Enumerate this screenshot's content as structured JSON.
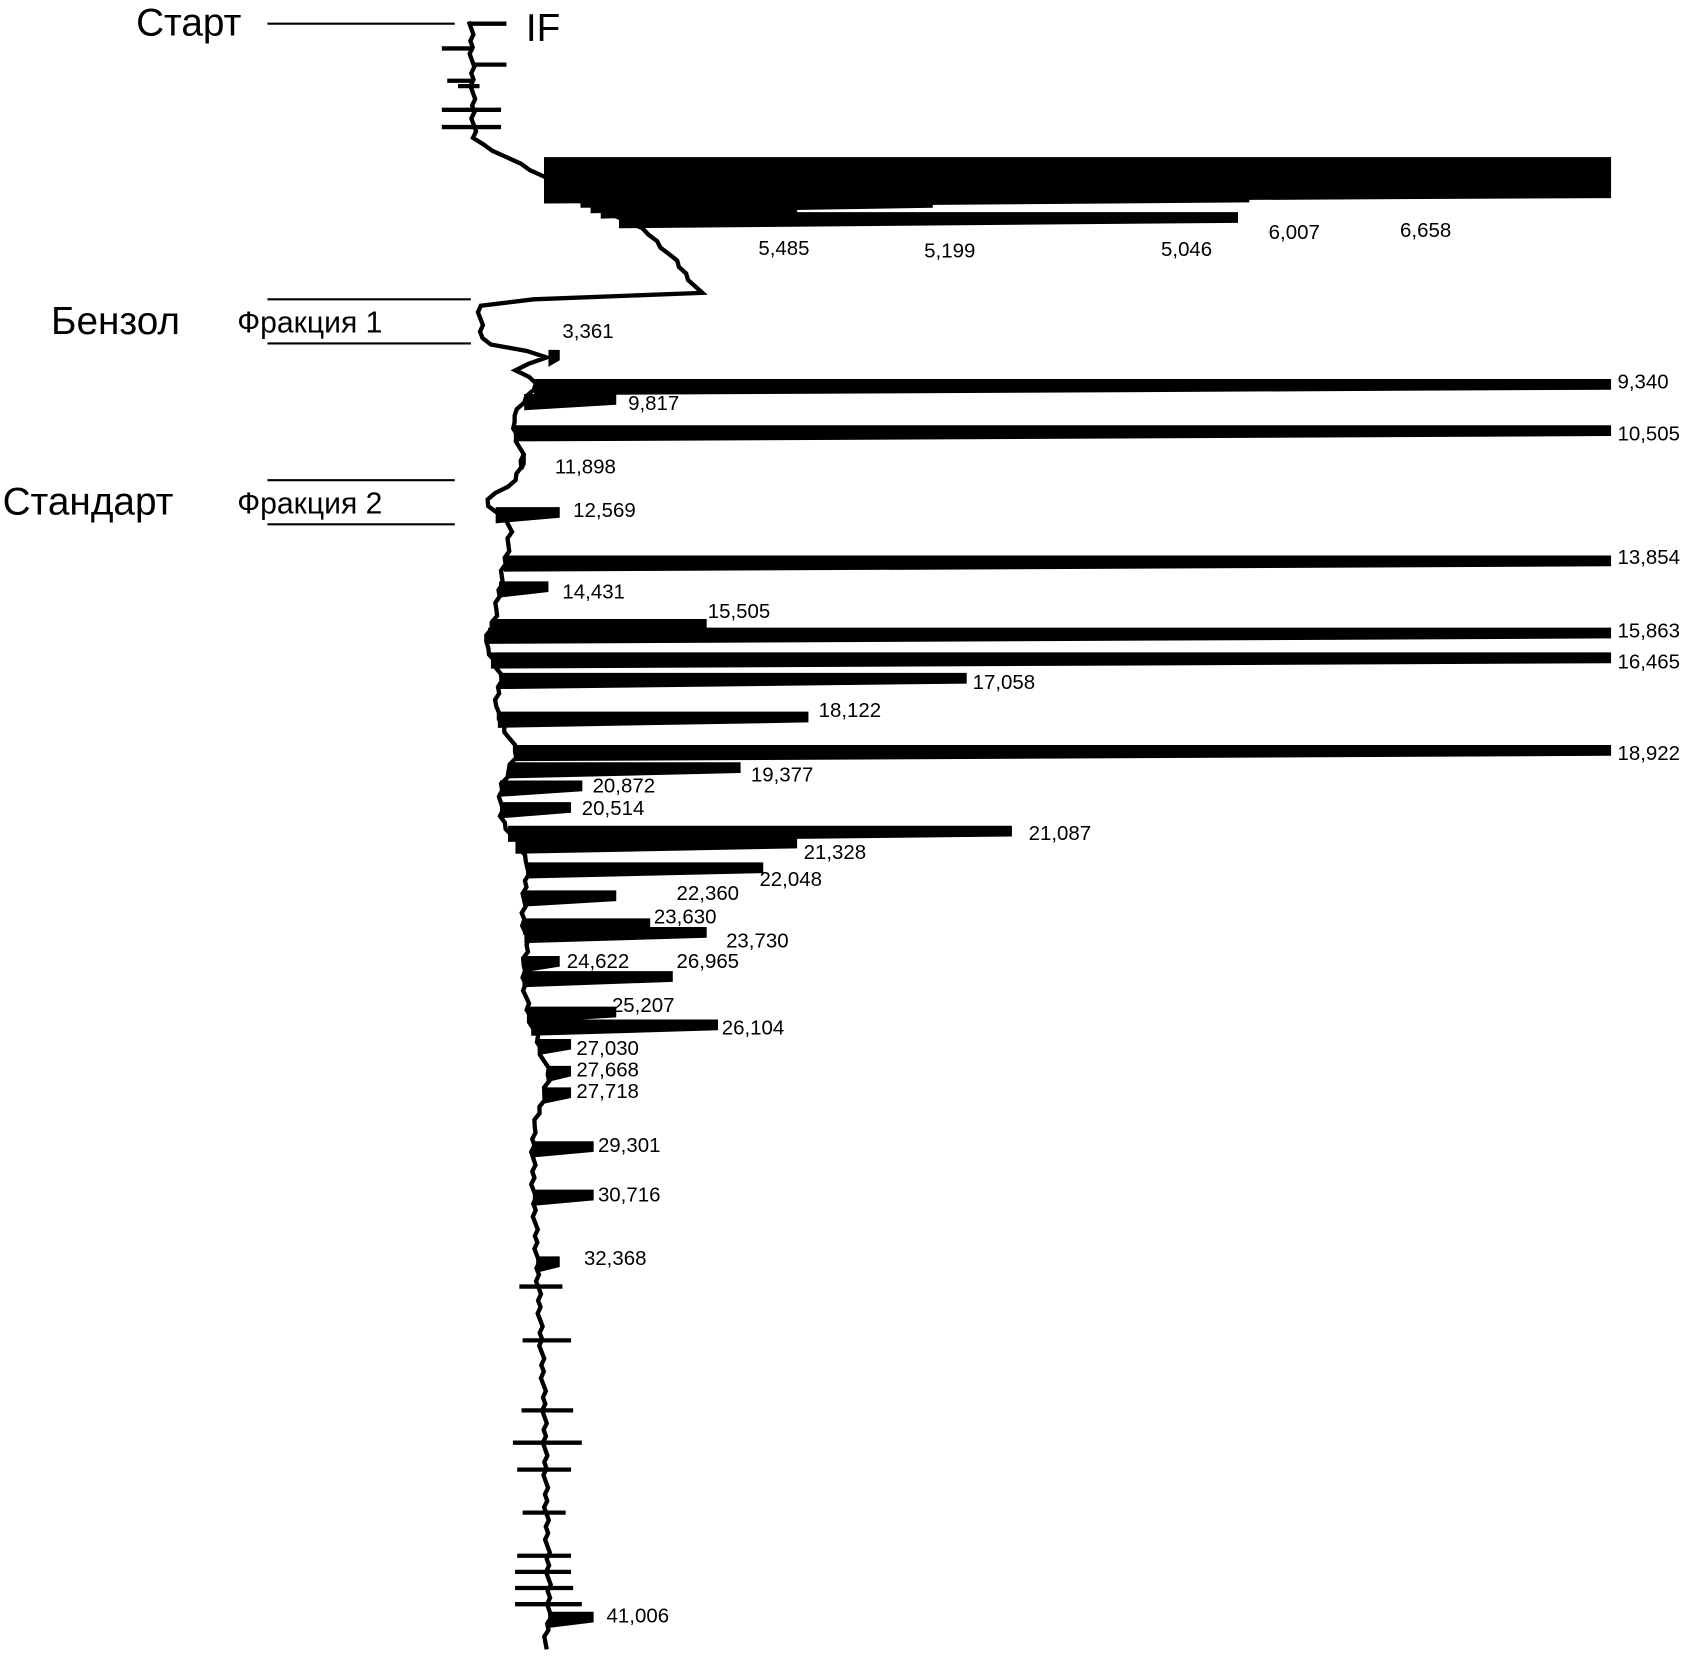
{
  "chart_data": {
    "type": "line",
    "orientation": "vertical (time runs downward, signal to the right)",
    "annotations": {
      "start": "Старт",
      "injection": "IF",
      "solvent": "Бензол",
      "fraction1": "Фракция 1",
      "standard": "Стандарт",
      "fraction2": "Фракция 2"
    },
    "peaks": [
      {
        "label": "6,658",
        "intensity": 1.0
      },
      {
        "label": "6,007",
        "intensity": 0.68
      },
      {
        "label": "5,046",
        "intensity": 0.67
      },
      {
        "label": "5,199",
        "intensity": 0.4
      },
      {
        "label": "5,485",
        "intensity": 0.28
      },
      {
        "label": "3,361",
        "intensity": 0.07
      },
      {
        "label": "9,340",
        "intensity": 1.0
      },
      {
        "label": "9,817",
        "intensity": 0.12
      },
      {
        "label": "10,505",
        "intensity": 1.0
      },
      {
        "label": "11,898",
        "intensity": 0.04
      },
      {
        "label": "12,569",
        "intensity": 0.07
      },
      {
        "label": "13,854",
        "intensity": 1.0
      },
      {
        "label": "14,431",
        "intensity": 0.06
      },
      {
        "label": "15,505",
        "intensity": 0.2
      },
      {
        "label": "15,863",
        "intensity": 1.0
      },
      {
        "label": "16,465",
        "intensity": 1.0
      },
      {
        "label": "17,058",
        "intensity": 0.43
      },
      {
        "label": "18,122",
        "intensity": 0.29
      },
      {
        "label": "18,922",
        "intensity": 1.0
      },
      {
        "label": "19,377",
        "intensity": 0.23
      },
      {
        "label": "20,872",
        "intensity": 0.09
      },
      {
        "label": "20,514",
        "intensity": 0.08
      },
      {
        "label": "21,087",
        "intensity": 0.47
      },
      {
        "label": "21,328",
        "intensity": 0.28
      },
      {
        "label": "22,048",
        "intensity": 0.25
      },
      {
        "label": "22,360",
        "intensity": 0.12
      },
      {
        "label": "23,630",
        "intensity": 0.15
      },
      {
        "label": "23,730",
        "intensity": 0.2
      },
      {
        "label": "24,622",
        "intensity": 0.07
      },
      {
        "label": "26,965",
        "intensity": 0.17
      },
      {
        "label": "25,207",
        "intensity": 0.12
      },
      {
        "label": "26,104",
        "intensity": 0.21
      },
      {
        "label": "27,030",
        "intensity": 0.08
      },
      {
        "label": "27,668",
        "intensity": 0.08
      },
      {
        "label": "27,718",
        "intensity": 0.08
      },
      {
        "label": "29,301",
        "intensity": 0.1
      },
      {
        "label": "30,716",
        "intensity": 0.1
      },
      {
        "label": "32,368",
        "intensity": 0.07
      },
      {
        "label": "41,006",
        "intensity": 0.1
      }
    ]
  }
}
